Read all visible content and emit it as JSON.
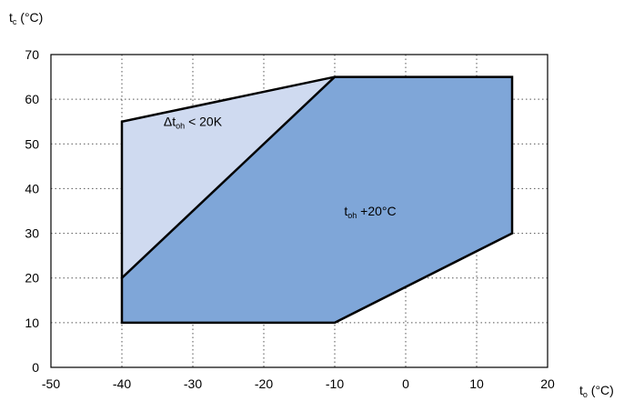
{
  "chart_data": {
    "type": "area",
    "title": "",
    "x_axis": {
      "label_main": "t",
      "label_sub": "o",
      "label_unit": " (°C)",
      "ticks": [
        -50,
        -40,
        -30,
        -20,
        -10,
        0,
        10,
        20
      ],
      "range": [
        -50,
        20
      ]
    },
    "y_axis": {
      "label_main": "t",
      "label_sub": "c",
      "label_unit": " (°C)",
      "ticks": [
        0,
        10,
        20,
        30,
        40,
        50,
        60,
        70
      ],
      "range": [
        0,
        70
      ]
    },
    "grid": "dotted",
    "regions": [
      {
        "id": "light",
        "label_prefix": "Δt",
        "label_sub": "oh",
        "label_suffix": " < 20K",
        "label_at": [
          -30,
          54
        ],
        "color": "#cfdaf0",
        "points": [
          [
            -40,
            20
          ],
          [
            -40,
            55
          ],
          [
            -10,
            65
          ]
        ]
      },
      {
        "id": "dark",
        "label_prefix": "t",
        "label_sub": "oh",
        "label_suffix": " +20°C",
        "label_at": [
          -5,
          34
        ],
        "color": "#7fa6d8",
        "points": [
          [
            -40,
            20
          ],
          [
            -10,
            65
          ],
          [
            15,
            65
          ],
          [
            15,
            30
          ],
          [
            -10,
            10
          ],
          [
            -40,
            10
          ]
        ]
      }
    ],
    "envelope": [
      [
        -40,
        10
      ],
      [
        -40,
        55
      ],
      [
        -10,
        65
      ],
      [
        15,
        65
      ],
      [
        15,
        30
      ],
      [
        -10,
        10
      ]
    ],
    "divider": [
      [
        -40,
        20
      ],
      [
        -10,
        65
      ]
    ]
  }
}
